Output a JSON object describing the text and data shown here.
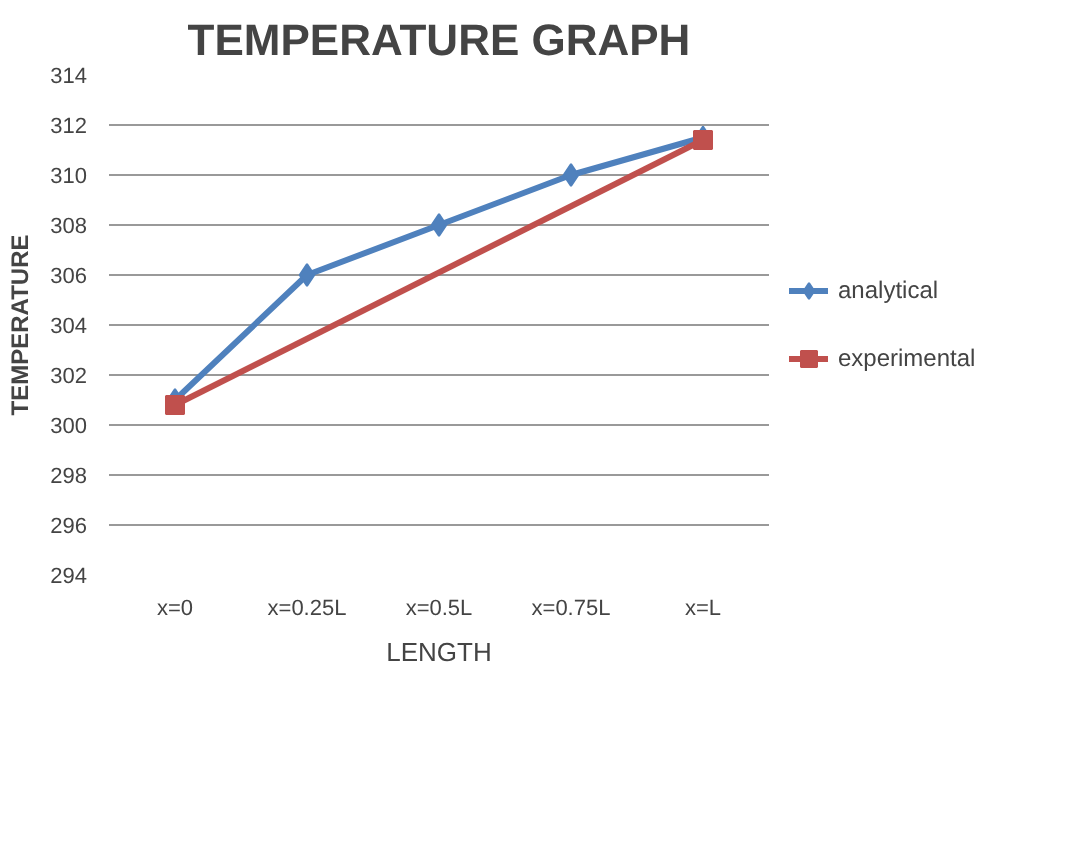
{
  "chart_data": {
    "type": "line",
    "title": "TEMPERATURE GRAPH",
    "xlabel": "LENGTH",
    "ylabel": "TEMPERATURE",
    "categories": [
      "x=0",
      "x=0.25L",
      "x=0.5L",
      "x=0.75L",
      "x=L"
    ],
    "series": [
      {
        "name": "analytical",
        "color": "#4f81bd",
        "marker": "diamond",
        "values": [
          301,
          306,
          308,
          310,
          311.5
        ]
      },
      {
        "name": "experimental",
        "color": "#c0504d",
        "marker": "square",
        "values": [
          300.8,
          null,
          null,
          null,
          311.4
        ]
      }
    ],
    "ylim": [
      294,
      314
    ],
    "yticks": [
      294,
      296,
      298,
      300,
      302,
      304,
      306,
      308,
      310,
      312,
      314
    ],
    "grid": "y",
    "legend": "right",
    "line_style": "solid"
  }
}
